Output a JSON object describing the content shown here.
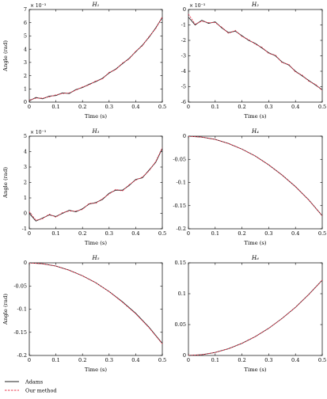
{
  "chart_data": [
    {
      "type": "line",
      "title": "H₁",
      "xlabel": "Time (s)",
      "ylabel": "Angle (rad)",
      "scale_label": "× 10⁻³",
      "xlim": [
        0,
        0.5
      ],
      "ylim": [
        0,
        7
      ],
      "xticks": [
        "0",
        "0.1",
        "0.2",
        "0.3",
        "0.4",
        "0.5"
      ],
      "yticks": [
        "0",
        "1",
        "2",
        "3",
        "4",
        "5",
        "6",
        "7"
      ],
      "series": [
        {
          "name": "Adams",
          "x": [
            0,
            0.025,
            0.05,
            0.075,
            0.1,
            0.125,
            0.15,
            0.175,
            0.2,
            0.225,
            0.25,
            0.275,
            0.3,
            0.325,
            0.35,
            0.375,
            0.4,
            0.425,
            0.45,
            0.475,
            0.5
          ],
          "y": [
            0.1,
            0.35,
            0.25,
            0.45,
            0.5,
            0.7,
            0.65,
            0.95,
            1.1,
            1.35,
            1.55,
            1.8,
            2.2,
            2.5,
            2.9,
            3.3,
            3.8,
            4.3,
            4.9,
            5.6,
            6.4
          ]
        },
        {
          "name": "Our method",
          "x": [
            0,
            0.025,
            0.05,
            0.075,
            0.1,
            0.125,
            0.15,
            0.175,
            0.2,
            0.225,
            0.25,
            0.275,
            0.3,
            0.325,
            0.35,
            0.375,
            0.4,
            0.425,
            0.45,
            0.475,
            0.5
          ],
          "y": [
            0.15,
            0.3,
            0.3,
            0.4,
            0.55,
            0.65,
            0.7,
            0.9,
            1.15,
            1.3,
            1.6,
            1.75,
            2.25,
            2.45,
            2.95,
            3.25,
            3.85,
            4.25,
            4.95,
            5.55,
            6.45
          ]
        }
      ]
    },
    {
      "type": "line",
      "title": "H₂",
      "xlabel": "Time (s)",
      "ylabel": "",
      "scale_label": "× 10⁻³",
      "xlim": [
        0,
        0.5
      ],
      "ylim": [
        -6,
        0
      ],
      "xticks": [
        "0",
        "0.1",
        "0.2",
        "0.3",
        "0.4",
        "0.5"
      ],
      "yticks": [
        "-6",
        "-5",
        "-4",
        "-3",
        "-2",
        "-1",
        "0"
      ],
      "series": [
        {
          "name": "Adams",
          "x": [
            0,
            0.025,
            0.05,
            0.075,
            0.1,
            0.125,
            0.15,
            0.175,
            0.2,
            0.225,
            0.25,
            0.275,
            0.3,
            0.325,
            0.35,
            0.375,
            0.4,
            0.425,
            0.45,
            0.475,
            0.5
          ],
          "y": [
            -0.5,
            -1.0,
            -0.7,
            -0.9,
            -0.8,
            -1.2,
            -1.5,
            -1.4,
            -1.7,
            -2.0,
            -2.2,
            -2.5,
            -2.8,
            -3.0,
            -3.4,
            -3.6,
            -4.0,
            -4.3,
            -4.6,
            -4.9,
            -5.2
          ]
        },
        {
          "name": "Our method",
          "x": [
            0,
            0.025,
            0.05,
            0.075,
            0.1,
            0.125,
            0.15,
            0.175,
            0.2,
            0.225,
            0.25,
            0.275,
            0.3,
            0.325,
            0.35,
            0.375,
            0.4,
            0.425,
            0.45,
            0.475,
            0.5
          ],
          "y": [
            -0.3,
            -0.95,
            -0.75,
            -0.85,
            -0.85,
            -1.15,
            -1.55,
            -1.35,
            -1.75,
            -1.95,
            -2.25,
            -2.45,
            -2.85,
            -2.95,
            -3.45,
            -3.55,
            -4.05,
            -4.25,
            -4.65,
            -4.85,
            -5.25
          ]
        }
      ]
    },
    {
      "type": "line",
      "title": "H₃",
      "xlabel": "Time (s)",
      "ylabel": "Angle (rad)",
      "scale_label": "× 10⁻³",
      "xlim": [
        0,
        0.5
      ],
      "ylim": [
        -1,
        5
      ],
      "xticks": [
        "0",
        "0.1",
        "0.2",
        "0.3",
        "0.4",
        "0.5"
      ],
      "yticks": [
        "-1",
        "0",
        "1",
        "2",
        "3",
        "4",
        "5"
      ],
      "series": [
        {
          "name": "Adams",
          "x": [
            0,
            0.025,
            0.05,
            0.075,
            0.1,
            0.125,
            0.15,
            0.175,
            0.2,
            0.225,
            0.25,
            0.275,
            0.3,
            0.325,
            0.35,
            0.375,
            0.4,
            0.425,
            0.45,
            0.475,
            0.5
          ],
          "y": [
            0.0,
            -0.5,
            -0.3,
            -0.1,
            -0.2,
            0.0,
            0.2,
            0.1,
            0.3,
            0.6,
            0.7,
            0.9,
            1.3,
            1.5,
            1.5,
            1.8,
            2.2,
            2.3,
            2.8,
            3.3,
            4.2
          ]
        },
        {
          "name": "Our method",
          "x": [
            0,
            0.025,
            0.05,
            0.075,
            0.1,
            0.125,
            0.15,
            0.175,
            0.2,
            0.225,
            0.25,
            0.275,
            0.3,
            0.325,
            0.35,
            0.375,
            0.4,
            0.425,
            0.45,
            0.475,
            0.5
          ],
          "y": [
            0.1,
            -0.45,
            -0.35,
            -0.05,
            -0.25,
            0.05,
            0.15,
            0.15,
            0.25,
            0.65,
            0.65,
            0.95,
            1.25,
            1.55,
            1.45,
            1.85,
            2.15,
            2.35,
            2.75,
            3.35,
            4.25
          ]
        }
      ]
    },
    {
      "type": "line",
      "title": "H₄",
      "xlabel": "Time (s)",
      "ylabel": "",
      "scale_label": "",
      "xlim": [
        0,
        0.5
      ],
      "ylim": [
        -0.2,
        0
      ],
      "xticks": [
        "0",
        "0.1",
        "0.2",
        "0.3",
        "0.4",
        "0.5"
      ],
      "yticks": [
        "-0.2",
        "-0.15",
        "-0.1",
        "-0.05",
        "0"
      ],
      "series": [
        {
          "name": "Adams",
          "x": [
            0,
            0.05,
            0.1,
            0.15,
            0.2,
            0.25,
            0.3,
            0.35,
            0.4,
            0.45,
            0.5
          ],
          "y": [
            0,
            -0.002,
            -0.007,
            -0.016,
            -0.028,
            -0.043,
            -0.062,
            -0.084,
            -0.109,
            -0.138,
            -0.172
          ]
        },
        {
          "name": "Our method",
          "x": [
            0,
            0.05,
            0.1,
            0.15,
            0.2,
            0.25,
            0.3,
            0.35,
            0.4,
            0.45,
            0.5
          ],
          "y": [
            0,
            -0.002,
            -0.007,
            -0.016,
            -0.028,
            -0.043,
            -0.062,
            -0.084,
            -0.109,
            -0.138,
            -0.172
          ]
        }
      ]
    },
    {
      "type": "line",
      "title": "H₅",
      "xlabel": "Time (s)",
      "ylabel": "Angle (rad)",
      "scale_label": "",
      "xlim": [
        0,
        0.5
      ],
      "ylim": [
        -0.2,
        0
      ],
      "xticks": [
        "0",
        "0.1",
        "0.2",
        "0.3",
        "0.4",
        "0.5"
      ],
      "yticks": [
        "-0.2",
        "-0.15",
        "-0.1",
        "-0.05",
        "0"
      ],
      "series": [
        {
          "name": "Adams",
          "x": [
            0,
            0.05,
            0.1,
            0.15,
            0.2,
            0.25,
            0.3,
            0.35,
            0.4,
            0.45,
            0.5
          ],
          "y": [
            0,
            -0.002,
            -0.007,
            -0.016,
            -0.028,
            -0.043,
            -0.062,
            -0.084,
            -0.109,
            -0.139,
            -0.174
          ]
        },
        {
          "name": "Our method",
          "x": [
            0,
            0.05,
            0.1,
            0.15,
            0.2,
            0.25,
            0.3,
            0.35,
            0.4,
            0.45,
            0.5
          ],
          "y": [
            0,
            -0.002,
            -0.007,
            -0.016,
            -0.028,
            -0.043,
            -0.062,
            -0.085,
            -0.11,
            -0.14,
            -0.175
          ]
        }
      ]
    },
    {
      "type": "line",
      "title": "H₆",
      "xlabel": "Time (s)",
      "ylabel": "",
      "scale_label": "",
      "xlim": [
        0,
        0.5
      ],
      "ylim": [
        0,
        0.15
      ],
      "xticks": [
        "0",
        "0.1",
        "0.2",
        "0.3",
        "0.4",
        "0.5"
      ],
      "yticks": [
        "0",
        "0.05",
        "0.1",
        "0.15"
      ],
      "series": [
        {
          "name": "Adams",
          "x": [
            0,
            0.05,
            0.1,
            0.15,
            0.2,
            0.25,
            0.3,
            0.35,
            0.4,
            0.45,
            0.5
          ],
          "y": [
            0,
            0.0012,
            0.0049,
            0.011,
            0.0196,
            0.0306,
            0.044,
            0.06,
            0.078,
            0.099,
            0.122
          ]
        },
        {
          "name": "Our method",
          "x": [
            0,
            0.05,
            0.1,
            0.15,
            0.2,
            0.25,
            0.3,
            0.35,
            0.4,
            0.45,
            0.5
          ],
          "y": [
            0,
            0.0012,
            0.0049,
            0.011,
            0.0196,
            0.0306,
            0.044,
            0.06,
            0.078,
            0.099,
            0.122
          ]
        }
      ]
    }
  ],
  "legend": {
    "placement": "bottom-left",
    "items": [
      {
        "label": "Adams",
        "color": "#222222",
        "style": "solid"
      },
      {
        "label": "Our method",
        "color": "#e8384f",
        "style": "dashed"
      }
    ]
  },
  "colors": {
    "adams": "#222222",
    "ours": "#e8384f"
  }
}
